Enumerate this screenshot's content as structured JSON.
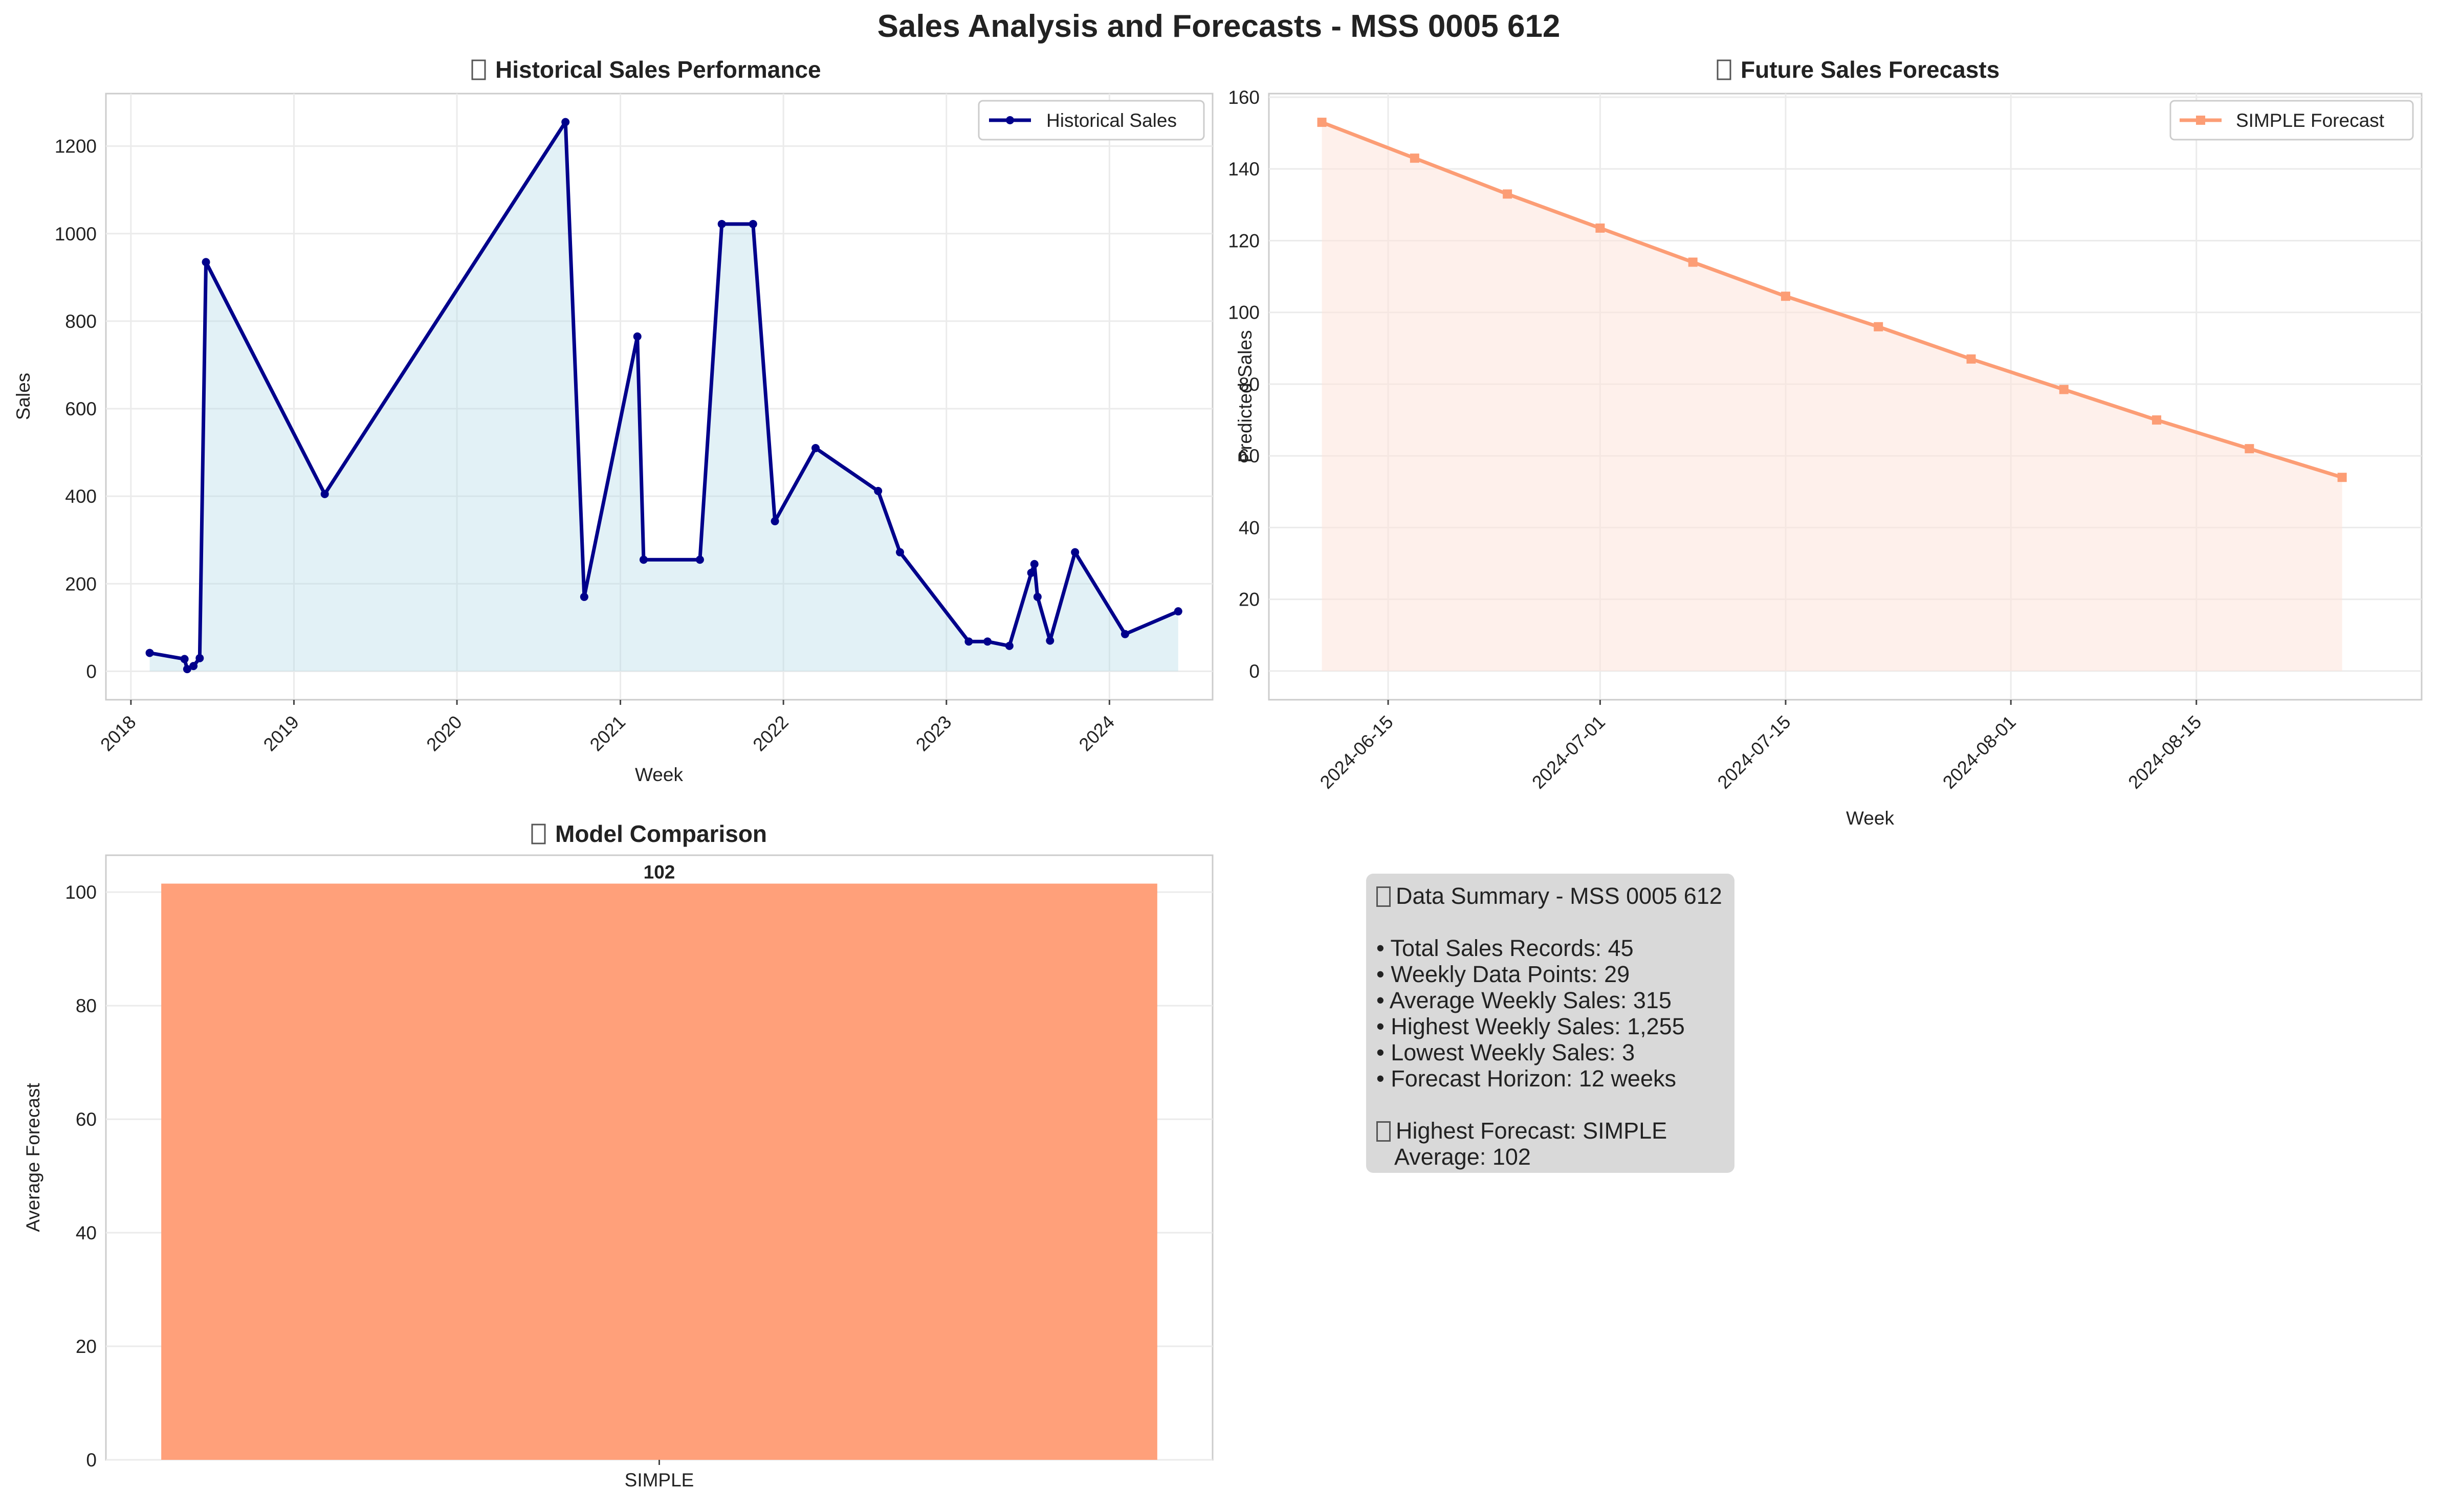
{
  "figure_title": "Sales Analysis and Forecasts - MSS 0005 612",
  "chart_data": [
    {
      "type": "line",
      "title": "Historical Sales Performance",
      "title_icon": "chart-icon",
      "xlabel": "Week",
      "ylabel": "Sales",
      "x_ticks": [
        "2018",
        "2019",
        "2020",
        "2021",
        "2022",
        "2023",
        "2024"
      ],
      "y_ticks": [
        "0",
        "200",
        "400",
        "600",
        "800",
        "1000",
        "1200"
      ],
      "xlim": [
        "2017-11-06",
        "2024-08-19"
      ],
      "ylim": [
        -65,
        1320
      ],
      "grid": true,
      "legend_position": "top-right",
      "line_color": "#00008b",
      "fill_color": "#add8e6",
      "series": [
        {
          "name": "Historical Sales",
          "points": [
            {
              "x": "2018-02-12",
              "y": 42
            },
            {
              "x": "2018-05-01",
              "y": 28
            },
            {
              "x": "2018-05-07",
              "y": 5
            },
            {
              "x": "2018-05-21",
              "y": 12
            },
            {
              "x": "2018-06-04",
              "y": 30
            },
            {
              "x": "2018-06-18",
              "y": 935
            },
            {
              "x": "2019-03-11",
              "y": 405
            },
            {
              "x": "2020-08-31",
              "y": 1255
            },
            {
              "x": "2020-10-12",
              "y": 170
            },
            {
              "x": "2021-02-08",
              "y": 765
            },
            {
              "x": "2021-02-22",
              "y": 255
            },
            {
              "x": "2021-06-28",
              "y": 255
            },
            {
              "x": "2021-08-16",
              "y": 1022
            },
            {
              "x": "2021-10-25",
              "y": 1022
            },
            {
              "x": "2021-12-13",
              "y": 343
            },
            {
              "x": "2022-03-14",
              "y": 510
            },
            {
              "x": "2022-08-01",
              "y": 412
            },
            {
              "x": "2022-09-19",
              "y": 272
            },
            {
              "x": "2023-02-20",
              "y": 68
            },
            {
              "x": "2023-04-03",
              "y": 68
            },
            {
              "x": "2023-05-22",
              "y": 58
            },
            {
              "x": "2023-07-10",
              "y": 225
            },
            {
              "x": "2023-07-17",
              "y": 245
            },
            {
              "x": "2023-07-24",
              "y": 170
            },
            {
              "x": "2023-08-21",
              "y": 70
            },
            {
              "x": "2023-10-16",
              "y": 272
            },
            {
              "x": "2024-02-05",
              "y": 85
            },
            {
              "x": "2024-06-03",
              "y": 137
            }
          ]
        }
      ]
    },
    {
      "type": "area",
      "title": "Future Sales Forecasts",
      "title_icon": "crystal-ball-icon",
      "xlabel": "Week",
      "ylabel": "Predicted Sales",
      "x_ticks": [
        "2024-06-15",
        "2024-07-01",
        "2024-07-15",
        "2024-08-01",
        "2024-08-15"
      ],
      "y_ticks": [
        "0",
        "20",
        "40",
        "60",
        "80",
        "100",
        "120",
        "140",
        "160"
      ],
      "xlim": [
        "2024-06-06",
        "2024-09-01"
      ],
      "ylim": [
        -8,
        161
      ],
      "grid": true,
      "legend_position": "top-right",
      "line_color": "#fc9d75",
      "fill_color": "#fde4da",
      "series": [
        {
          "name": "SIMPLE Forecast",
          "points": [
            {
              "x": "2024-06-10",
              "y": 153
            },
            {
              "x": "2024-06-17",
              "y": 143
            },
            {
              "x": "2024-06-24",
              "y": 133
            },
            {
              "x": "2024-07-01",
              "y": 123.5
            },
            {
              "x": "2024-07-08",
              "y": 114
            },
            {
              "x": "2024-07-15",
              "y": 104.5
            },
            {
              "x": "2024-07-22",
              "y": 96
            },
            {
              "x": "2024-07-29",
              "y": 87
            },
            {
              "x": "2024-08-05",
              "y": 78.5
            },
            {
              "x": "2024-08-12",
              "y": 70
            },
            {
              "x": "2024-08-19",
              "y": 62
            },
            {
              "x": "2024-08-26",
              "y": 54
            }
          ]
        }
      ]
    },
    {
      "type": "bar",
      "title": "Model Comparison",
      "title_icon": "trophy-icon",
      "xlabel": "",
      "ylabel": "Average Forecast",
      "categories": [
        "SIMPLE"
      ],
      "values": [
        101.5
      ],
      "data_labels": [
        "102"
      ],
      "y_ticks": [
        "0",
        "20",
        "40",
        "60",
        "80",
        "100"
      ],
      "ylim": [
        0,
        106.5
      ],
      "grid": true,
      "bar_color": "#ffa07a"
    }
  ],
  "summary": {
    "title": "Data Summary - MSS 0005 612",
    "title_icon": "clipboard-icon",
    "items": [
      "• Total Sales Records: 45",
      "• Weekly Data Points: 29",
      "• Average Weekly Sales: 315",
      "• Highest Weekly Sales: 1,255",
      "• Lowest Weekly Sales: 3",
      "• Forecast Horizon: 12 weeks"
    ],
    "highlight_icon": "trophy-icon",
    "highlight_title": "Highest Forecast: SIMPLE",
    "highlight_value": "   Average: 102"
  }
}
